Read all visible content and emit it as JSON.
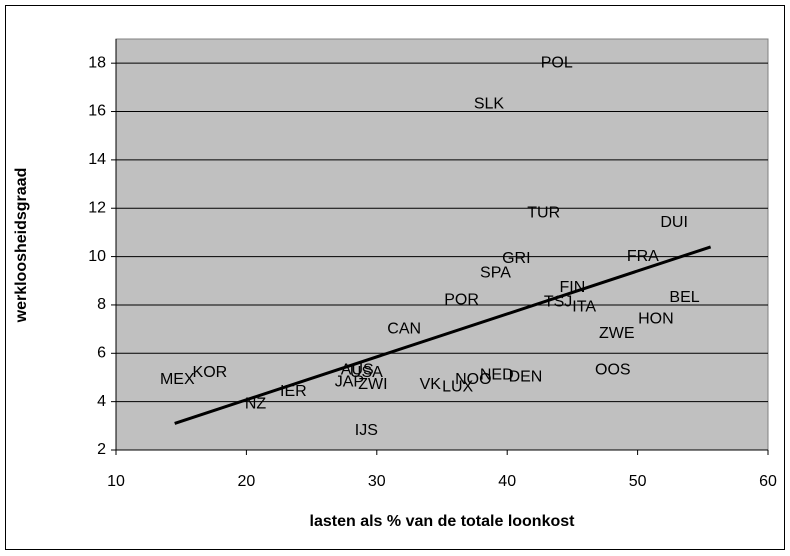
{
  "chart_data": {
    "type": "scatter",
    "x_label": "lasten als % van de totale loonkost",
    "y_label": "werkloosheidsgraad",
    "xlim": [
      10,
      60
    ],
    "xticks": [
      10,
      20,
      30,
      40,
      50,
      60
    ],
    "ylim": [
      2,
      19
    ],
    "yticks": [
      2,
      4,
      6,
      8,
      10,
      12,
      14,
      16,
      18
    ],
    "grid": true,
    "plot_background": "#c0c0c0",
    "points": [
      {
        "label": "POL",
        "x": 43.8,
        "y": 18.0
      },
      {
        "label": "SLK",
        "x": 38.6,
        "y": 16.3
      },
      {
        "label": "TUR",
        "x": 42.8,
        "y": 11.8
      },
      {
        "label": "DUI",
        "x": 52.8,
        "y": 11.4
      },
      {
        "label": "FRA",
        "x": 50.4,
        "y": 10.0
      },
      {
        "label": "GRI",
        "x": 40.7,
        "y": 9.9
      },
      {
        "label": "SPA",
        "x": 39.1,
        "y": 9.3
      },
      {
        "label": "FIN",
        "x": 45.0,
        "y": 8.7
      },
      {
        "label": "BEL",
        "x": 53.6,
        "y": 8.3
      },
      {
        "label": "POR",
        "x": 36.5,
        "y": 8.2
      },
      {
        "label": "TSJ",
        "x": 43.9,
        "y": 8.1
      },
      {
        "label": "ITA",
        "x": 45.9,
        "y": 7.9
      },
      {
        "label": "HON",
        "x": 51.4,
        "y": 7.4
      },
      {
        "label": "ZWE",
        "x": 48.4,
        "y": 6.8
      },
      {
        "label": "CAN",
        "x": 32.1,
        "y": 7.0
      },
      {
        "label": "OOS",
        "x": 48.1,
        "y": 5.3
      },
      {
        "label": "AUS",
        "x": 28.5,
        "y": 5.3
      },
      {
        "label": "USA",
        "x": 29.2,
        "y": 5.2
      },
      {
        "label": "KOR",
        "x": 17.2,
        "y": 5.2
      },
      {
        "label": "MEX",
        "x": 14.7,
        "y": 4.9
      },
      {
        "label": "NED",
        "x": 39.2,
        "y": 5.1
      },
      {
        "label": "DEN",
        "x": 41.4,
        "y": 5.0
      },
      {
        "label": "NOO",
        "x": 37.4,
        "y": 4.9
      },
      {
        "label": "JAP",
        "x": 27.9,
        "y": 4.8
      },
      {
        "label": "ZWI",
        "x": 29.7,
        "y": 4.7
      },
      {
        "label": "VK",
        "x": 34.1,
        "y": 4.7
      },
      {
        "label": "LUX",
        "x": 36.2,
        "y": 4.6
      },
      {
        "label": "IER",
        "x": 23.6,
        "y": 4.4
      },
      {
        "label": "NZ",
        "x": 20.7,
        "y": 3.9
      },
      {
        "label": "IJS",
        "x": 29.2,
        "y": 2.8
      }
    ],
    "trendline": {
      "x": [
        14.5,
        55.6
      ],
      "y": [
        3.1,
        10.4
      ],
      "color": "#000000"
    }
  }
}
